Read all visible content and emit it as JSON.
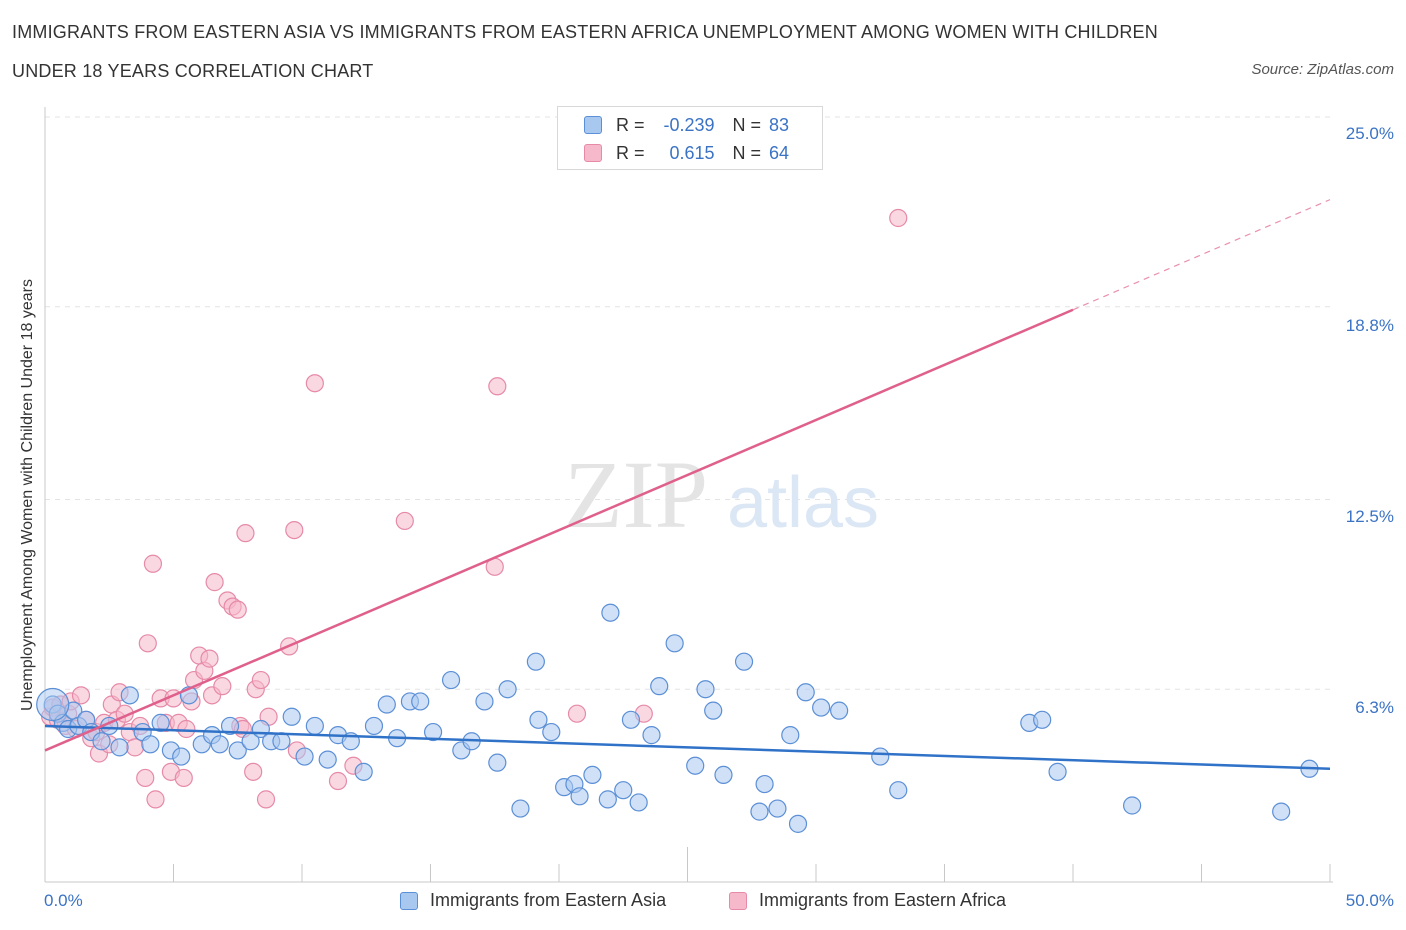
{
  "header": {
    "title_line1": "IMMIGRANTS FROM EASTERN ASIA VS IMMIGRANTS FROM EASTERN AFRICA UNEMPLOYMENT AMONG WOMEN WITH CHILDREN",
    "title_line2": "UNDER 18 YEARS CORRELATION CHART",
    "source": "Source: ZipAtlas.com"
  },
  "colors": {
    "blue_fill": "#a9c8f0",
    "blue_stroke": "#5b8fd6",
    "blue_line": "#2f72c8",
    "pink_fill": "#f6b8cb",
    "pink_stroke": "#e68aa8",
    "pink_line": "#e0608c",
    "tick_text": "#3b73c4",
    "grid": "#e3e3e3"
  },
  "watermark": {
    "zip": "ZIP",
    "atlas": "atlas"
  },
  "stats_legend": {
    "rows": [
      {
        "r_label": "R =",
        "r_value": "-0.239",
        "n_label": "N =",
        "n_value": "83",
        "series": "blue"
      },
      {
        "r_label": "R =",
        "r_value": "0.615",
        "n_label": "N =",
        "n_value": "64",
        "series": "pink"
      }
    ]
  },
  "chart_data": {
    "type": "scatter",
    "title": "IMMIGRANTS FROM EASTERN ASIA VS IMMIGRANTS FROM EASTERN AFRICA UNEMPLOYMENT AMONG WOMEN WITH CHILDREN UNDER 18 YEARS CORRELATION CHART",
    "xlabel": "",
    "ylabel": "Unemployment Among Women with Children Under 18 years",
    "xlim": [
      0,
      50
    ],
    "ylim": [
      0,
      25
    ],
    "x_tick_labels": [
      "0.0%",
      "50.0%"
    ],
    "y_ticks": [
      6.3,
      12.5,
      18.8,
      25.0
    ],
    "y_tick_labels": [
      "6.3%",
      "12.5%",
      "18.8%",
      "25.0%"
    ],
    "grid": "horizontal dashed",
    "legend_placement": "bottom-center",
    "series": [
      {
        "name": "Immigrants from Eastern Asia",
        "color": "blue",
        "r": -0.239,
        "n": 83,
        "trend": {
          "x": [
            0,
            50
          ],
          "y": [
            5.1,
            3.7
          ]
        },
        "points": [
          [
            0.3,
            5.8
          ],
          [
            0.5,
            5.5
          ],
          [
            0.7,
            5.2
          ],
          [
            0.9,
            5.0
          ],
          [
            1.1,
            5.6
          ],
          [
            1.3,
            5.1
          ],
          [
            1.6,
            5.3
          ],
          [
            1.8,
            4.9
          ],
          [
            2.2,
            4.6
          ],
          [
            2.5,
            5.1
          ],
          [
            2.9,
            4.4
          ],
          [
            3.3,
            6.1
          ],
          [
            3.8,
            4.9
          ],
          [
            4.1,
            4.5
          ],
          [
            4.5,
            5.2
          ],
          [
            4.9,
            4.3
          ],
          [
            5.3,
            4.1
          ],
          [
            5.6,
            6.1
          ],
          [
            6.1,
            4.5
          ],
          [
            6.5,
            4.8
          ],
          [
            6.8,
            4.5
          ],
          [
            7.2,
            5.1
          ],
          [
            7.5,
            4.3
          ],
          [
            8.0,
            4.6
          ],
          [
            8.4,
            5.0
          ],
          [
            8.8,
            4.6
          ],
          [
            9.2,
            4.6
          ],
          [
            9.6,
            5.4
          ],
          [
            10.1,
            4.1
          ],
          [
            10.5,
            5.1
          ],
          [
            11.0,
            4.0
          ],
          [
            11.4,
            4.8
          ],
          [
            11.9,
            4.6
          ],
          [
            12.4,
            3.6
          ],
          [
            12.8,
            5.1
          ],
          [
            13.3,
            5.8
          ],
          [
            13.7,
            4.7
          ],
          [
            14.2,
            5.9
          ],
          [
            14.6,
            5.9
          ],
          [
            15.1,
            4.9
          ],
          [
            15.8,
            6.6
          ],
          [
            16.2,
            4.3
          ],
          [
            16.6,
            4.6
          ],
          [
            17.1,
            5.9
          ],
          [
            17.6,
            3.9
          ],
          [
            18.0,
            6.3
          ],
          [
            18.5,
            2.4
          ],
          [
            19.2,
            5.3
          ],
          [
            19.1,
            7.2
          ],
          [
            19.7,
            4.9
          ],
          [
            20.2,
            3.1
          ],
          [
            20.6,
            3.2
          ],
          [
            20.8,
            2.8
          ],
          [
            21.3,
            3.5
          ],
          [
            21.9,
            2.7
          ],
          [
            22.0,
            8.8
          ],
          [
            22.5,
            3.0
          ],
          [
            22.8,
            5.3
          ],
          [
            23.1,
            2.6
          ],
          [
            23.6,
            4.8
          ],
          [
            23.9,
            6.4
          ],
          [
            24.5,
            7.8
          ],
          [
            25.3,
            3.8
          ],
          [
            25.7,
            6.3
          ],
          [
            26.0,
            5.6
          ],
          [
            26.4,
            3.5
          ],
          [
            27.2,
            7.2
          ],
          [
            27.8,
            2.3
          ],
          [
            28.0,
            3.2
          ],
          [
            28.5,
            2.4
          ],
          [
            29.0,
            4.8
          ],
          [
            29.6,
            6.2
          ],
          [
            29.3,
            1.9
          ],
          [
            30.2,
            5.7
          ],
          [
            30.9,
            5.6
          ],
          [
            32.5,
            4.1
          ],
          [
            33.2,
            3.0
          ],
          [
            38.3,
            5.2
          ],
          [
            38.8,
            5.3
          ],
          [
            39.4,
            3.6
          ],
          [
            42.3,
            2.5
          ],
          [
            48.1,
            2.3
          ],
          [
            49.2,
            3.7
          ]
        ]
      },
      {
        "name": "Immigrants from Eastern Africa",
        "color": "pink",
        "r": 0.615,
        "n": 64,
        "trend": {
          "x": [
            0,
            40
          ],
          "y": [
            4.3,
            18.7
          ]
        },
        "extension": {
          "x": [
            40,
            50
          ],
          "y": [
            18.7,
            22.3
          ]
        },
        "points": [
          [
            0.2,
            5.4
          ],
          [
            0.3,
            5.7
          ],
          [
            0.5,
            5.3
          ],
          [
            0.6,
            5.8
          ],
          [
            0.8,
            5.1
          ],
          [
            0.9,
            5.5
          ],
          [
            1.0,
            5.9
          ],
          [
            1.2,
            5.0
          ],
          [
            1.4,
            6.1
          ],
          [
            1.6,
            5.3
          ],
          [
            1.8,
            4.7
          ],
          [
            2.0,
            4.9
          ],
          [
            2.1,
            4.2
          ],
          [
            2.3,
            5.2
          ],
          [
            2.5,
            4.5
          ],
          [
            2.6,
            5.8
          ],
          [
            2.8,
            5.3
          ],
          [
            2.9,
            6.2
          ],
          [
            3.1,
            5.5
          ],
          [
            3.3,
            4.9
          ],
          [
            3.5,
            4.4
          ],
          [
            3.7,
            5.1
          ],
          [
            3.9,
            3.4
          ],
          [
            4.0,
            7.8
          ],
          [
            4.2,
            10.4
          ],
          [
            4.3,
            2.7
          ],
          [
            4.5,
            6.0
          ],
          [
            4.7,
            5.2
          ],
          [
            4.9,
            3.6
          ],
          [
            5.0,
            6.0
          ],
          [
            5.2,
            5.2
          ],
          [
            5.4,
            3.4
          ],
          [
            5.5,
            5.0
          ],
          [
            5.7,
            5.9
          ],
          [
            5.8,
            6.6
          ],
          [
            6.0,
            7.4
          ],
          [
            6.2,
            6.9
          ],
          [
            6.4,
            7.3
          ],
          [
            6.5,
            6.1
          ],
          [
            6.6,
            9.8
          ],
          [
            6.9,
            6.4
          ],
          [
            7.1,
            9.2
          ],
          [
            7.3,
            9.0
          ],
          [
            7.5,
            8.9
          ],
          [
            7.6,
            5.1
          ],
          [
            7.7,
            5.0
          ],
          [
            7.8,
            11.4
          ],
          [
            8.1,
            3.6
          ],
          [
            8.2,
            6.3
          ],
          [
            8.4,
            6.6
          ],
          [
            8.7,
            5.4
          ],
          [
            8.6,
            2.7
          ],
          [
            9.5,
            7.7
          ],
          [
            9.7,
            11.5
          ],
          [
            9.8,
            4.3
          ],
          [
            10.5,
            16.3
          ],
          [
            11.4,
            3.3
          ],
          [
            12.0,
            3.8
          ],
          [
            14.0,
            11.8
          ],
          [
            17.5,
            10.3
          ],
          [
            17.6,
            16.2
          ],
          [
            20.7,
            5.5
          ],
          [
            23.3,
            5.5
          ],
          [
            33.2,
            21.7
          ]
        ]
      }
    ]
  },
  "bottom_legend": [
    {
      "label": "Immigrants from Eastern Asia",
      "series": "blue"
    },
    {
      "label": "Immigrants from Eastern Africa",
      "series": "pink"
    }
  ]
}
